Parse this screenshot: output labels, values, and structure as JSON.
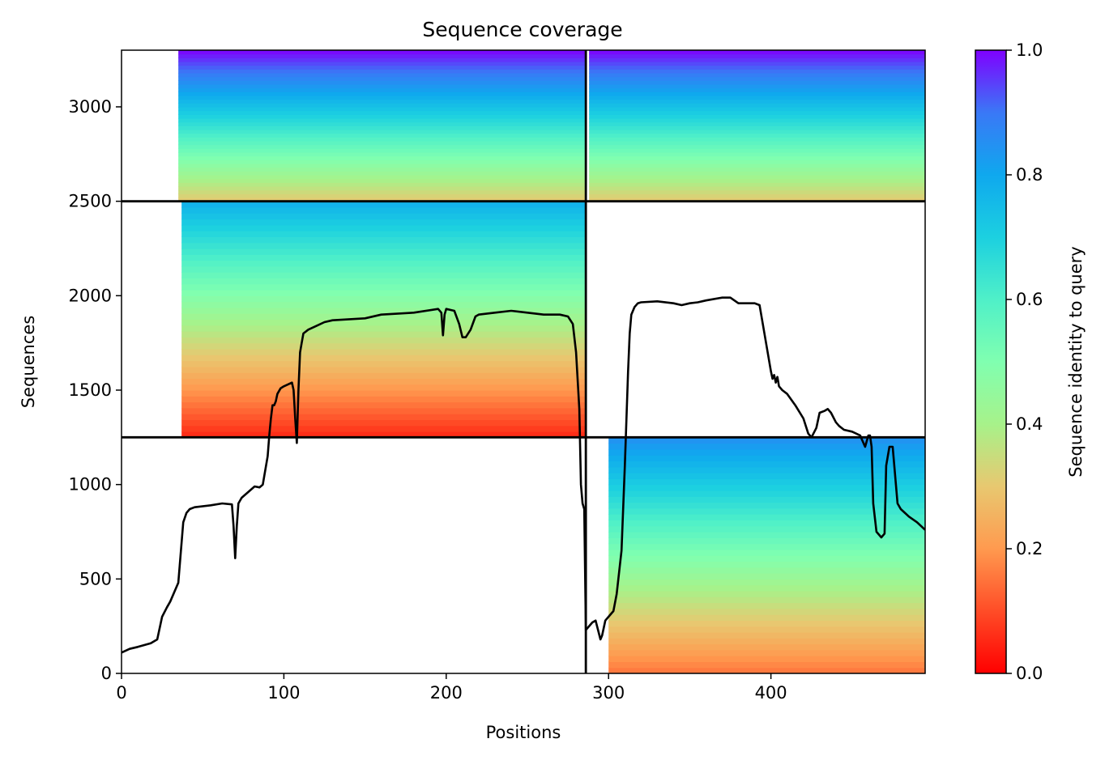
{
  "chart_data": {
    "type": "heatmap",
    "title": "Sequence coverage",
    "xlabel": "Positions",
    "ylabel": "Sequences",
    "xlim": [
      0,
      495
    ],
    "ylim": [
      0,
      3300
    ],
    "xticks": [
      0,
      100,
      200,
      300,
      400
    ],
    "yticks": [
      0,
      500,
      1000,
      1500,
      2000,
      2500,
      3000
    ],
    "colorbar": {
      "label": "Sequence identity to query",
      "range": [
        0.0,
        1.0
      ],
      "ticks": [
        "0.0",
        "0.2",
        "0.4",
        "0.6",
        "0.8",
        "1.0"
      ],
      "colormap": "rainbow_r"
    },
    "dividers": {
      "vertical_x": 286,
      "horizontal_y": [
        1250,
        2500
      ]
    },
    "blocks": [
      {
        "name": "left-top",
        "x0": 0,
        "x1": 286,
        "y0": 2500,
        "y1": 3300,
        "row_start": 35,
        "identity_range": [
          0.3,
          1.0
        ]
      },
      {
        "name": "left-middle",
        "x0": 0,
        "x1": 286,
        "y0": 1250,
        "y1": 2500,
        "row_start": 37,
        "identity_range": [
          0.05,
          0.78
        ]
      },
      {
        "name": "right-top",
        "x0": 286,
        "x1": 495,
        "y0": 2500,
        "y1": 3300,
        "row_start": 288,
        "identity_range": [
          0.3,
          1.0
        ]
      },
      {
        "name": "right-bottom",
        "x0": 286,
        "x1": 495,
        "y0": 0,
        "y1": 1250,
        "row_start": 300,
        "identity_range": [
          0.15,
          0.85
        ]
      }
    ],
    "series": [
      {
        "type": "line",
        "x": [
          0,
          5,
          10,
          18,
          22,
          25,
          28,
          30,
          35,
          38,
          40,
          42,
          45,
          55,
          62,
          68,
          69,
          70,
          71,
          72,
          74,
          78,
          82,
          85,
          87,
          88,
          90,
          91,
          92,
          93,
          94,
          95,
          96,
          98,
          100,
          105,
          106,
          107,
          108,
          109,
          110,
          111,
          112,
          115,
          120,
          125,
          130,
          150,
          160,
          180,
          195,
          197,
          198,
          199,
          200,
          205,
          208,
          210,
          212,
          215,
          218,
          220,
          230,
          240,
          250,
          260,
          270,
          275,
          278,
          280,
          282,
          283,
          284,
          285,
          286,
          287,
          290,
          292,
          295,
          296,
          298,
          300,
          303,
          305,
          308,
          310,
          312,
          313,
          314,
          316,
          318,
          320,
          330,
          340,
          345,
          350,
          355,
          360,
          370,
          375,
          380,
          385,
          390,
          393,
          395,
          397,
          400,
          401,
          402,
          403,
          404,
          405,
          407,
          410,
          415,
          420,
          423,
          425,
          428,
          430,
          433,
          435,
          437,
          440,
          442,
          445,
          450,
          455,
          456,
          458,
          460,
          461,
          462,
          463,
          465,
          468,
          470,
          471,
          473,
          475,
          476,
          478,
          480,
          485,
          490,
          495
        ],
        "y": [
          110,
          130,
          140,
          160,
          180,
          300,
          350,
          380,
          480,
          800,
          850,
          870,
          880,
          890,
          900,
          895,
          780,
          610,
          780,
          900,
          930,
          960,
          990,
          985,
          1000,
          1050,
          1150,
          1260,
          1350,
          1420,
          1420,
          1440,
          1480,
          1510,
          1520,
          1540,
          1500,
          1350,
          1220,
          1500,
          1700,
          1750,
          1800,
          1820,
          1840,
          1860,
          1870,
          1880,
          1900,
          1910,
          1930,
          1910,
          1790,
          1900,
          1930,
          1920,
          1850,
          1780,
          1780,
          1820,
          1890,
          1900,
          1910,
          1920,
          1910,
          1900,
          1900,
          1890,
          1850,
          1700,
          1400,
          1000,
          900,
          870,
          230,
          240,
          270,
          280,
          180,
          200,
          280,
          300,
          330,
          420,
          650,
          1100,
          1600,
          1800,
          1900,
          1940,
          1960,
          1965,
          1970,
          1960,
          1950,
          1960,
          1965,
          1975,
          1990,
          1990,
          1960,
          1960,
          1960,
          1950,
          1850,
          1750,
          1600,
          1560,
          1580,
          1540,
          1570,
          1520,
          1500,
          1480,
          1420,
          1350,
          1270,
          1250,
          1300,
          1380,
          1390,
          1400,
          1380,
          1330,
          1310,
          1290,
          1280,
          1260,
          1240,
          1200,
          1260,
          1260,
          1200,
          900,
          750,
          720,
          740,
          1100,
          1200,
          1200,
          1100,
          900,
          870,
          830,
          800,
          760
        ]
      }
    ]
  }
}
